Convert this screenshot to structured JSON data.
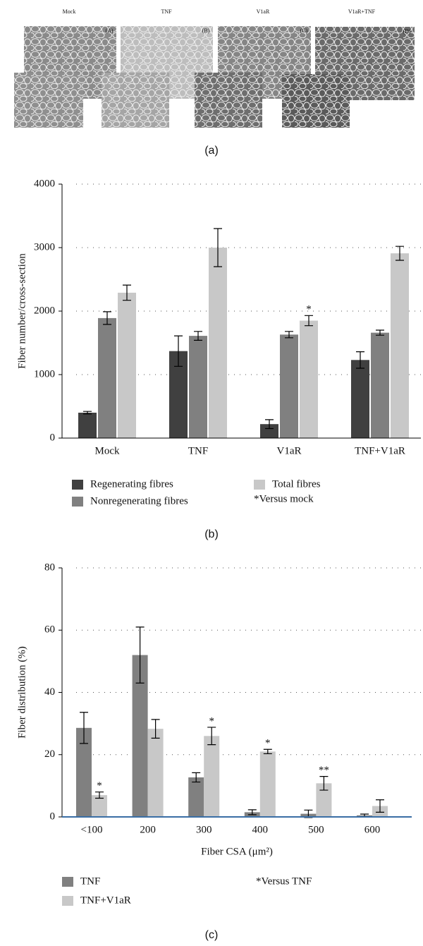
{
  "images": [
    {
      "label": "Mock",
      "tag": "(A)"
    },
    {
      "label": "TNF",
      "tag": "(B)"
    },
    {
      "label": "V1aR",
      "tag": "(C)"
    },
    {
      "label": "V1aR+TNF",
      "tag": "(D)"
    }
  ],
  "captions": [
    "(a)",
    "(b)",
    "(c)"
  ],
  "chart_data": [
    {
      "type": "bar",
      "ylabel": "Fiber number/cross-section",
      "categories": [
        "Mock",
        "TNF",
        "V1aR",
        "TNF+V1aR"
      ],
      "series": [
        {
          "name": "Regenerating fibres",
          "color": "#404040",
          "values": [
            400,
            1370,
            220,
            1230
          ],
          "errors": [
            20,
            240,
            70,
            130
          ],
          "markers": [
            null,
            null,
            null,
            null
          ]
        },
        {
          "name": "Nonregenerating fibres",
          "color": "#808080",
          "values": [
            1890,
            1610,
            1630,
            1660
          ],
          "errors": [
            100,
            70,
            50,
            40
          ],
          "markers": [
            null,
            null,
            null,
            null
          ]
        },
        {
          "name": "Total fibres",
          "color": "#c8c8c8",
          "values": [
            2290,
            3000,
            1850,
            2910
          ],
          "errors": [
            120,
            300,
            80,
            110
          ],
          "markers": [
            null,
            null,
            "*",
            null
          ]
        }
      ],
      "note": "*Versus mock",
      "ylim": [
        0,
        4000
      ],
      "yticks": [
        0,
        1000,
        2000,
        3000,
        4000
      ],
      "grid": true
    },
    {
      "type": "bar",
      "ylabel": "Fiber distribution (%)",
      "xlabel": "Fiber CSA (μm²)",
      "categories": [
        "<100",
        "200",
        "300",
        "400",
        "500",
        "600"
      ],
      "series": [
        {
          "name": "TNF",
          "color": "#808080",
          "values": [
            28.6,
            52,
            12.7,
            1.5,
            1,
            0.5
          ],
          "errors": [
            5,
            9,
            1.5,
            0.8,
            1.2,
            0.4
          ],
          "markers": [
            null,
            null,
            null,
            null,
            null,
            null
          ]
        },
        {
          "name": "TNF+V1aR",
          "color": "#c8c8c8",
          "values": [
            7,
            28.3,
            26,
            21,
            10.8,
            3.5
          ],
          "errors": [
            1,
            3,
            2.8,
            0.7,
            2.2,
            2
          ],
          "markers": [
            "*",
            null,
            "*",
            "*",
            "**",
            null
          ]
        }
      ],
      "note": "*Versus TNF",
      "ylim": [
        0,
        80
      ],
      "yticks": [
        0,
        20,
        40,
        60,
        80
      ],
      "grid": true
    }
  ]
}
